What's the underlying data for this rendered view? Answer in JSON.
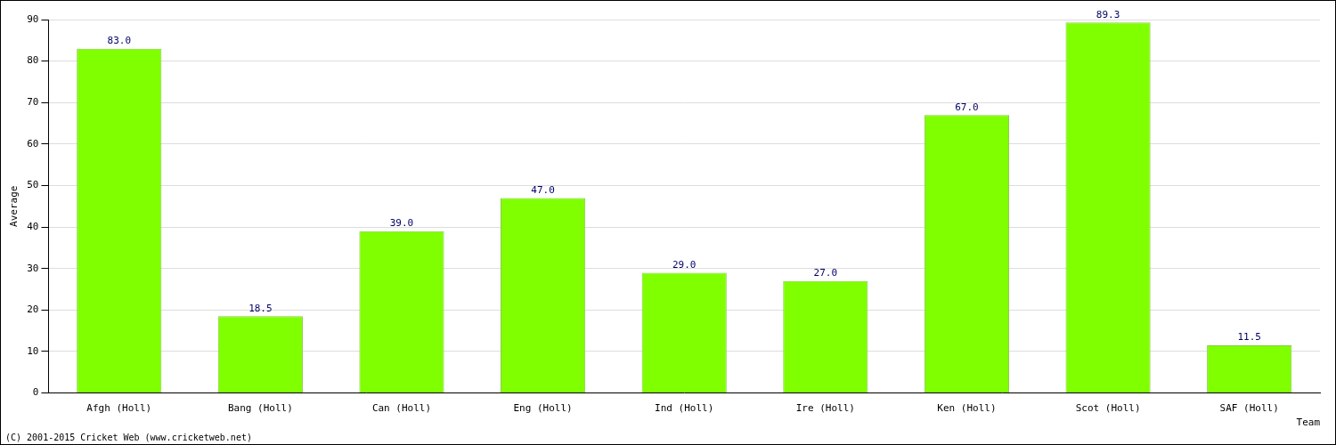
{
  "chart_data": {
    "type": "bar",
    "categories": [
      "Afgh (Holl)",
      "Bang (Holl)",
      "Can (Holl)",
      "Eng (Holl)",
      "Ind (Holl)",
      "Ire (Holl)",
      "Ken (Holl)",
      "Scot (Holl)",
      "SAF (Holl)"
    ],
    "values": [
      83.0,
      18.5,
      39.0,
      47.0,
      29.0,
      27.0,
      67.0,
      89.3,
      11.5
    ],
    "value_labels": [
      "83.0",
      "18.5",
      "39.0",
      "47.0",
      "29.0",
      "27.0",
      "67.0",
      "89.3",
      "11.5"
    ],
    "color": "#7fff00",
    "x_label": "Team",
    "y_label": "Average",
    "footer": "(C) 2001-2015 Cricket Web (www.cricketweb.net)",
    "ylim": [
      0,
      90
    ],
    "yticks": [
      0,
      10,
      20,
      30,
      40,
      50,
      60,
      70,
      80,
      90
    ],
    "grid": true,
    "data_labels": true
  }
}
